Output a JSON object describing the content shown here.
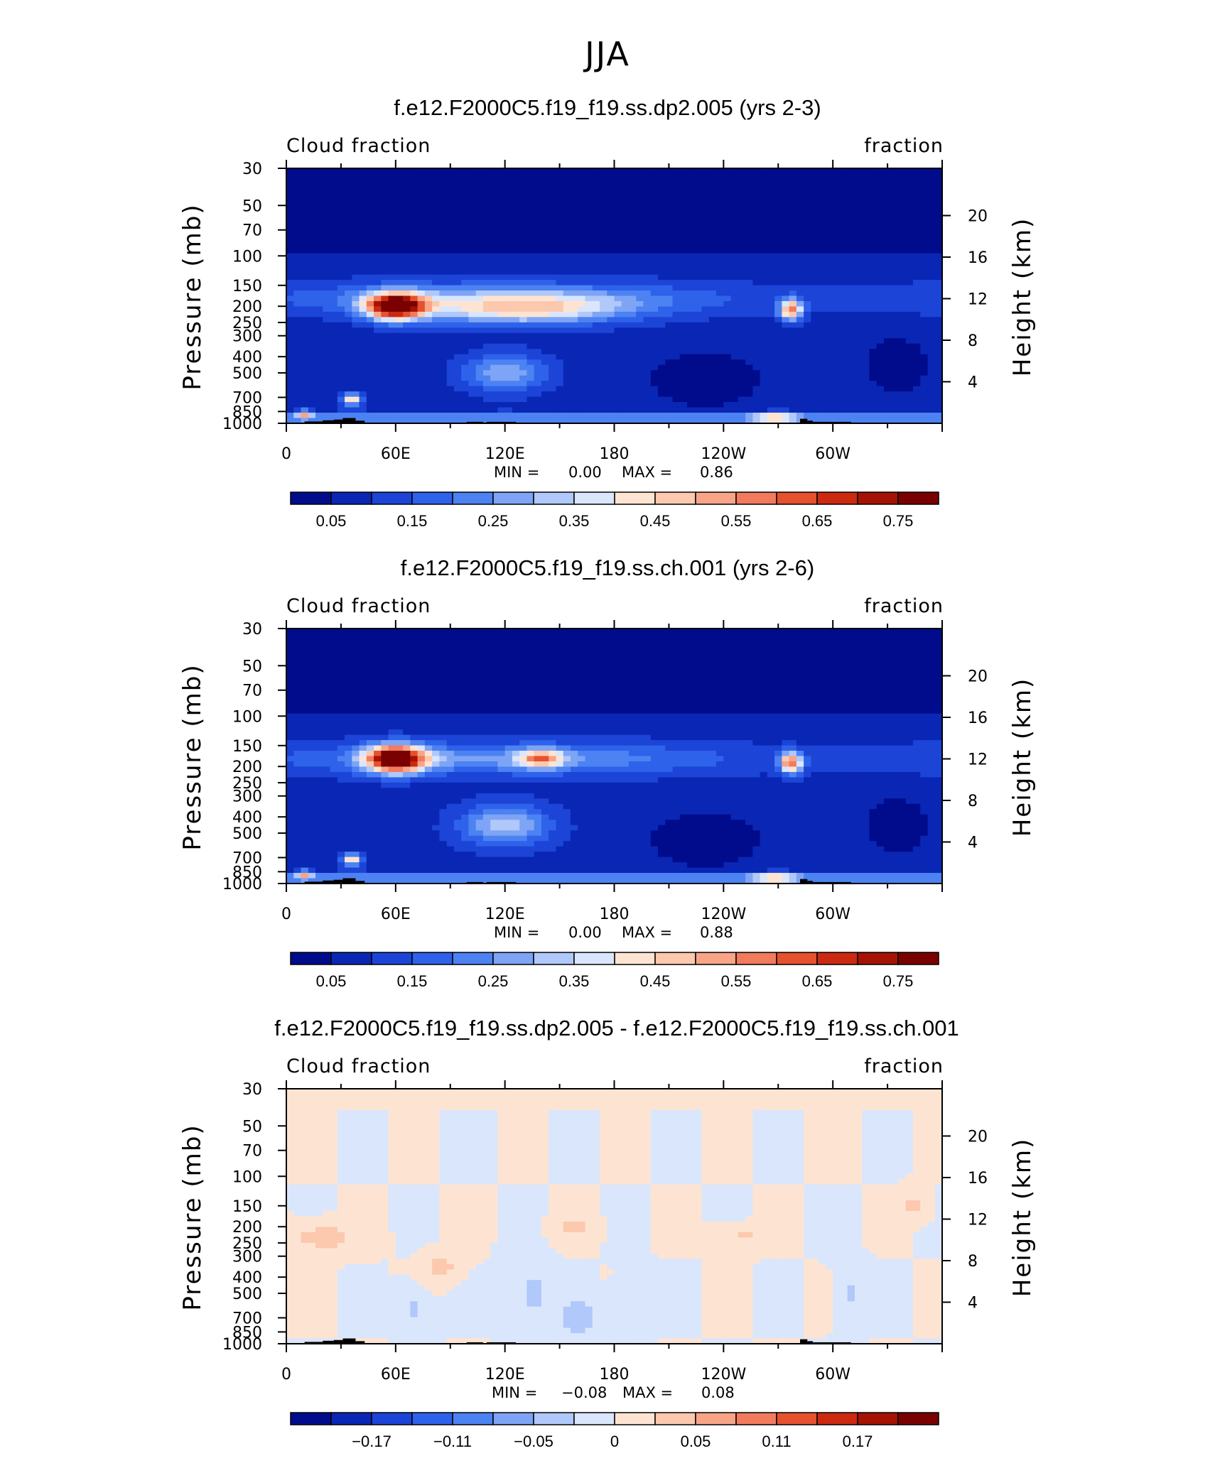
{
  "suptitle": "JJA",
  "chart_data": [
    {
      "type": "heatmap",
      "title": "f.e12.F2000C5.f19_f19.ss.dp2.005 (yrs 2-3)",
      "left_string": "Cloud fraction",
      "right_string": "fraction",
      "ylabel": "Pressure (mb)",
      "ylabel_right": "Height (km)",
      "x_ticks": [
        "0",
        "60E",
        "120E",
        "180",
        "120W",
        "60W"
      ],
      "y_ticks": [
        "30",
        "50",
        "70",
        "100",
        "150",
        "200",
        "250",
        "300",
        "400",
        "500",
        "700",
        "850",
        "1000"
      ],
      "y_right_ticks": [
        "20",
        "16",
        "12",
        "8",
        "4"
      ],
      "min_label": "MIN =",
      "min_value": "0.00",
      "max_label": "MAX =",
      "max_value": "0.86",
      "colorbar_ticks": [
        "0.05",
        "0.15",
        "0.25",
        "0.35",
        "0.45",
        "0.55",
        "0.65",
        "0.75"
      ],
      "colorbar_min": 0.0,
      "colorbar_max": 0.8,
      "colorbar_step": 0.05,
      "colors": [
        "#000c8c",
        "#0a26b4",
        "#1c44d6",
        "#2e62ea",
        "#4c82f2",
        "#7ea4f6",
        "#b0c8fa",
        "#dae6fc",
        "#fde4d2",
        "#fcc8ae",
        "#f8a487",
        "#f27b5d",
        "#e6512e",
        "#cc2a10",
        "#a51304",
        "#7a0101"
      ],
      "features": [
        {
          "lon": 60,
          "p": 200,
          "val": 0.86,
          "sx": 16,
          "sy": 0.18
        },
        {
          "lon": 130,
          "p": 210,
          "val": 0.42,
          "sx": 55,
          "sy": 0.2
        },
        {
          "lon": 120,
          "p": 500,
          "val": 0.33,
          "sx": 22,
          "sy": 0.25
        },
        {
          "lon": 277,
          "p": 210,
          "val": 0.62,
          "sx": 6,
          "sy": 0.14
        },
        {
          "lon": 268,
          "p": 930,
          "val": 0.42,
          "sx": 10,
          "sy": 0.06
        },
        {
          "lon": 36,
          "p": 720,
          "val": 0.5,
          "sx": 5,
          "sy": 0.08
        },
        {
          "lon": 10,
          "p": 880,
          "val": 0.42,
          "sx": 4,
          "sy": 0.06
        }
      ]
    },
    {
      "type": "heatmap",
      "title": "f.e12.F2000C5.f19_f19.ss.ch.001 (yrs 2-6)",
      "left_string": "Cloud fraction",
      "right_string": "fraction",
      "ylabel": "Pressure (mb)",
      "ylabel_right": "Height (km)",
      "x_ticks": [
        "0",
        "60E",
        "120E",
        "180",
        "120W",
        "60W"
      ],
      "y_ticks": [
        "30",
        "50",
        "70",
        "100",
        "150",
        "200",
        "250",
        "300",
        "400",
        "500",
        "700",
        "850",
        "1000"
      ],
      "y_right_ticks": [
        "20",
        "16",
        "12",
        "8",
        "4"
      ],
      "min_label": "MIN =",
      "min_value": "0.00",
      "max_label": "MAX =",
      "max_value": "0.88",
      "colorbar_ticks": [
        "0.05",
        "0.15",
        "0.25",
        "0.35",
        "0.45",
        "0.55",
        "0.65",
        "0.75"
      ],
      "colorbar_min": 0.0,
      "colorbar_max": 0.8,
      "colorbar_step": 0.05,
      "colors": [
        "#000c8c",
        "#0a26b4",
        "#1c44d6",
        "#2e62ea",
        "#4c82f2",
        "#7ea4f6",
        "#b0c8fa",
        "#dae6fc",
        "#fde4d2",
        "#fcc8ae",
        "#f8a487",
        "#f27b5d",
        "#e6512e",
        "#cc2a10",
        "#a51304",
        "#7a0101"
      ],
      "features": [
        {
          "lon": 60,
          "p": 180,
          "val": 0.88,
          "sx": 16,
          "sy": 0.18
        },
        {
          "lon": 140,
          "p": 180,
          "val": 0.5,
          "sx": 12,
          "sy": 0.12
        },
        {
          "lon": 120,
          "p": 450,
          "val": 0.37,
          "sx": 24,
          "sy": 0.28
        },
        {
          "lon": 277,
          "p": 190,
          "val": 0.62,
          "sx": 6,
          "sy": 0.14
        },
        {
          "lon": 268,
          "p": 930,
          "val": 0.42,
          "sx": 10,
          "sy": 0.06
        },
        {
          "lon": 36,
          "p": 720,
          "val": 0.5,
          "sx": 5,
          "sy": 0.08
        },
        {
          "lon": 10,
          "p": 880,
          "val": 0.42,
          "sx": 4,
          "sy": 0.06
        }
      ]
    },
    {
      "type": "heatmap",
      "title": "f.e12.F2000C5.f19_f19.ss.dp2.005 - f.e12.F2000C5.f19_f19.ss.ch.001",
      "left_string": "Cloud fraction",
      "right_string": "fraction",
      "ylabel": "Pressure (mb)",
      "ylabel_right": "Height (km)",
      "x_ticks": [
        "0",
        "60E",
        "120E",
        "180",
        "120W",
        "60W"
      ],
      "y_ticks": [
        "30",
        "50",
        "70",
        "100",
        "150",
        "200",
        "250",
        "300",
        "400",
        "500",
        "700",
        "850",
        "1000"
      ],
      "y_right_ticks": [
        "20",
        "16",
        "12",
        "8",
        "4"
      ],
      "min_label": "MIN =",
      "min_value": "−0.08",
      "max_label": "MAX =",
      "max_value": "0.08",
      "colorbar_ticks": [
        "−0.17",
        "−0.11",
        "−0.05",
        "0",
        "0.05",
        "0.11",
        "0.17"
      ],
      "colorbar_min": -0.24,
      "colorbar_max": 0.24,
      "colorbar_step": 0.03,
      "colors": [
        "#000c8c",
        "#0a26b4",
        "#1c44d6",
        "#2e62ea",
        "#4c82f2",
        "#7ea4f6",
        "#b0c8fa",
        "#dae6fc",
        "#fde4d2",
        "#fcc8ae",
        "#f8a487",
        "#f27b5d",
        "#e6512e",
        "#cc2a10",
        "#a51304",
        "#7a0101"
      ],
      "features": [
        {
          "lon": 20,
          "p": 230,
          "val": 0.05,
          "sx": 18,
          "sy": 0.2
        },
        {
          "lon": 85,
          "p": 350,
          "val": 0.04,
          "sx": 10,
          "sy": 0.2
        },
        {
          "lon": 160,
          "p": 200,
          "val": 0.04,
          "sx": 10,
          "sy": 0.15
        },
        {
          "lon": 250,
          "p": 230,
          "val": 0.035,
          "sx": 15,
          "sy": 0.15
        },
        {
          "lon": 345,
          "p": 150,
          "val": 0.04,
          "sx": 8,
          "sy": 0.2
        },
        {
          "lon": 70,
          "p": 620,
          "val": -0.04,
          "sx": 8,
          "sy": 0.3
        },
        {
          "lon": 135,
          "p": 500,
          "val": -0.04,
          "sx": 12,
          "sy": 0.4
        },
        {
          "lon": 160,
          "p": 700,
          "val": -0.05,
          "sx": 10,
          "sy": 0.25
        },
        {
          "lon": 310,
          "p": 500,
          "val": -0.035,
          "sx": 8,
          "sy": 0.4
        },
        {
          "lon": 190,
          "p": 600,
          "val": -0.025,
          "sx": 10,
          "sy": 0.4
        }
      ]
    }
  ]
}
